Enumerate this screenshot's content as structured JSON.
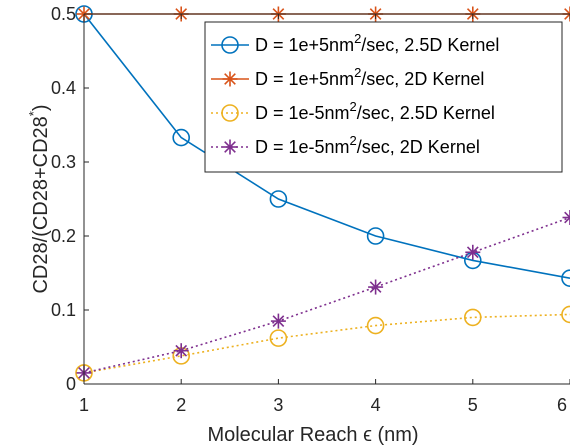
{
  "chart_data": {
    "type": "line",
    "x": [
      1,
      2,
      3,
      4,
      5,
      6
    ],
    "xlim": [
      1,
      6
    ],
    "ylim": [
      0,
      0.5
    ],
    "xticks": [
      "1",
      "2",
      "3",
      "4",
      "5",
      "6"
    ],
    "yticks": [
      "0",
      "0.1",
      "0.2",
      "0.3",
      "0.4",
      "0.5"
    ],
    "xlabel": "Molecular Reach ϵ (nm)",
    "ylabel": {
      "base": "CD28/(CD28+CD28",
      "sup": "*",
      "tail": ")"
    },
    "grid": false,
    "legend_position": "top-right",
    "series": [
      {
        "name": {
          "pre": "D = 1e+5nm",
          "sup": "2",
          "post": "/sec, 2.5D Kernel"
        },
        "values": [
          0.5,
          0.333,
          0.25,
          0.2,
          0.167,
          0.143
        ],
        "color": "#0072BD",
        "marker": "circle",
        "line": "solid"
      },
      {
        "name": {
          "pre": "D = 1e+5nm",
          "sup": "2",
          "post": "/sec, 2D Kernel"
        },
        "values": [
          0.5,
          0.5,
          0.5,
          0.5,
          0.5,
          0.5
        ],
        "color": "#D95319",
        "marker": "asterisk",
        "line": "solid"
      },
      {
        "name": {
          "pre": "D = 1e-5nm",
          "sup": "2",
          "post": "/sec, 2.5D Kernel"
        },
        "values": [
          0.015,
          0.038,
          0.062,
          0.079,
          0.09,
          0.094
        ],
        "color": "#EDB120",
        "marker": "circle",
        "line": "dotted"
      },
      {
        "name": {
          "pre": "D = 1e-5nm",
          "sup": "2",
          "post": "/sec, 2D Kernel"
        },
        "values": [
          0.015,
          0.045,
          0.085,
          0.131,
          0.178,
          0.225
        ],
        "color": "#7E2F8E",
        "marker": "asterisk",
        "line": "dotted"
      }
    ]
  }
}
